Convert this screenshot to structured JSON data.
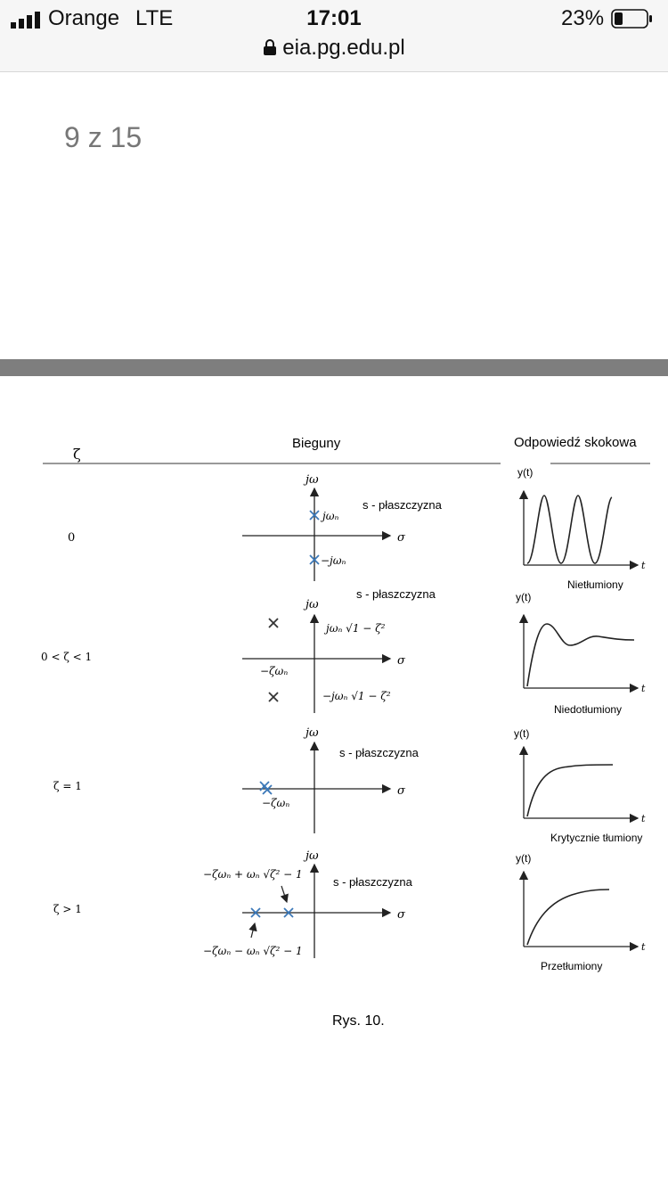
{
  "status_bar": {
    "carrier": "Orange",
    "network": "LTE",
    "time": "17:01",
    "url": "eia.pg.edu.pl",
    "battery": "23%"
  },
  "viewer": {
    "page_counter": "9 z 15"
  },
  "figure": {
    "header_zeta": "ζ",
    "header_poles": "Bieguny",
    "header_response": "Odpowiedź skokowa",
    "axis_jw": "jω",
    "axis_sigma": "σ",
    "axis_yt": "y(t)",
    "axis_t": "t",
    "s_plane": "s - płaszczyzna",
    "rows": [
      {
        "zeta": "0",
        "pole_label_top": "jωₙ",
        "pole_label_bottom": "−jωₙ",
        "response_label": "Nietłumiony"
      },
      {
        "zeta": "0 < ζ < 1",
        "pole_label_top": "jωₙ √1 − ζ²",
        "pole_label_real": "−ζωₙ",
        "pole_label_bottom": "−jωₙ √1 − ζ²",
        "response_label": "Niedotłumiony"
      },
      {
        "zeta": "ζ = 1",
        "pole_label_real": "−ζωₙ",
        "response_label": "Krytycznie tłumiony"
      },
      {
        "zeta": "ζ > 1",
        "pole_label_top": "−ζωₙ + ωₙ √ζ² − 1",
        "pole_label_bottom": "−ζωₙ − ωₙ √ζ² − 1",
        "response_label": "Przetłumiony"
      }
    ],
    "caption": "Rys. 10."
  }
}
